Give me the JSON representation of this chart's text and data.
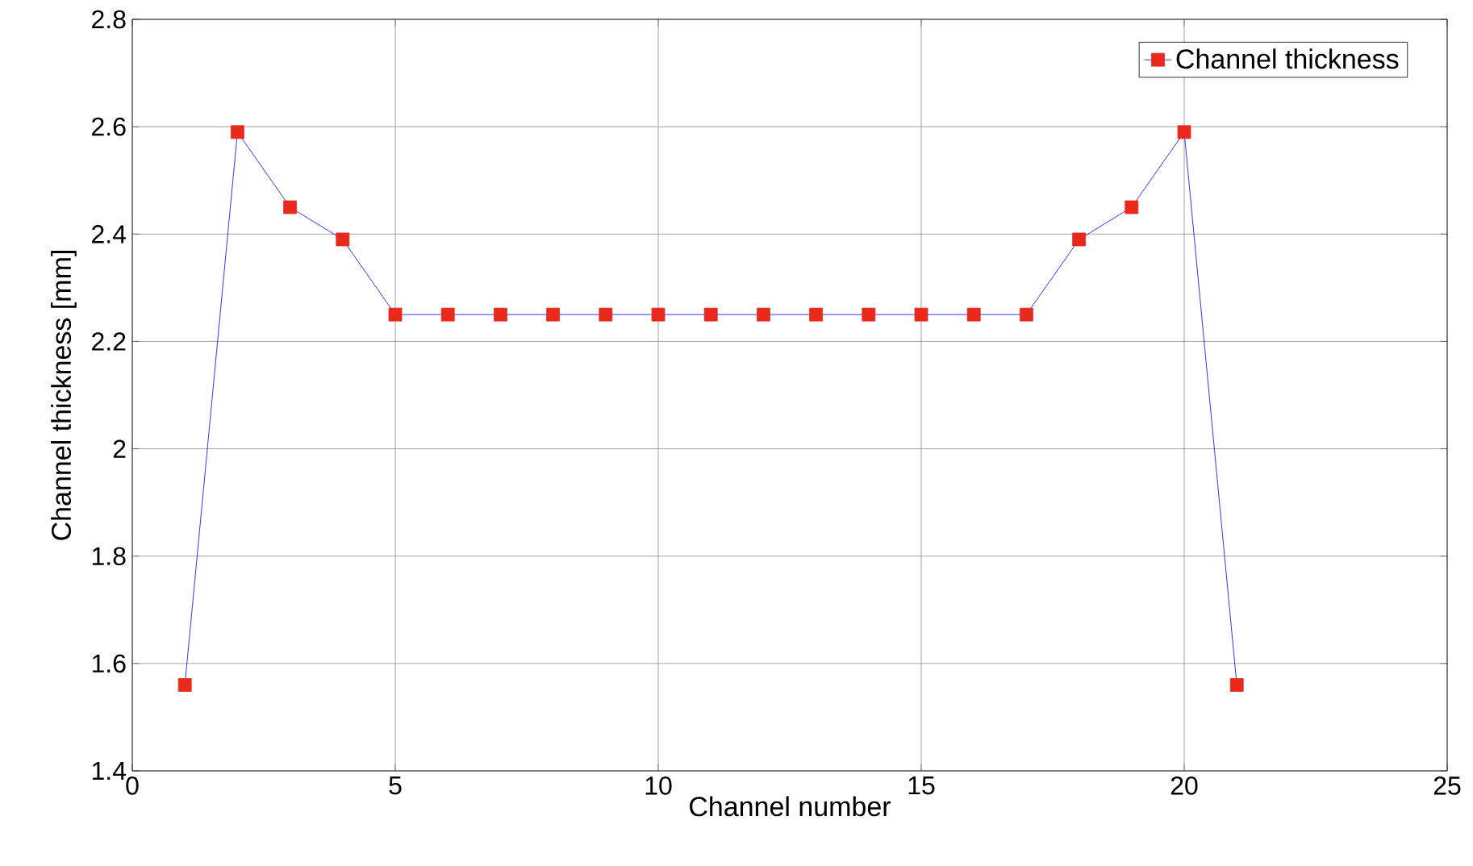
{
  "chart_data": {
    "type": "line",
    "xlabel": "Channel number",
    "ylabel": "Channel thickness [mm]",
    "x": [
      1,
      2,
      3,
      4,
      5,
      6,
      7,
      8,
      9,
      10,
      11,
      12,
      13,
      14,
      15,
      16,
      17,
      18,
      19,
      20,
      21
    ],
    "series": [
      {
        "name": "Channel thickness",
        "color": "#0000ff",
        "values": [
          1.56,
          2.59,
          2.45,
          2.39,
          2.25,
          2.25,
          2.25,
          2.25,
          2.25,
          2.25,
          2.25,
          2.25,
          2.25,
          2.25,
          2.25,
          2.25,
          2.25,
          2.39,
          2.45,
          2.59,
          1.56
        ]
      }
    ],
    "xlim": [
      0,
      25
    ],
    "ylim": [
      1.4,
      2.8
    ],
    "xticks": [
      0,
      5,
      10,
      15,
      20,
      25
    ],
    "yticks": [
      1.4,
      1.6,
      1.8,
      2,
      2.2,
      2.4,
      2.6,
      2.8
    ],
    "grid": true,
    "legend": "top right",
    "marker": "square",
    "line_style": "solid"
  }
}
